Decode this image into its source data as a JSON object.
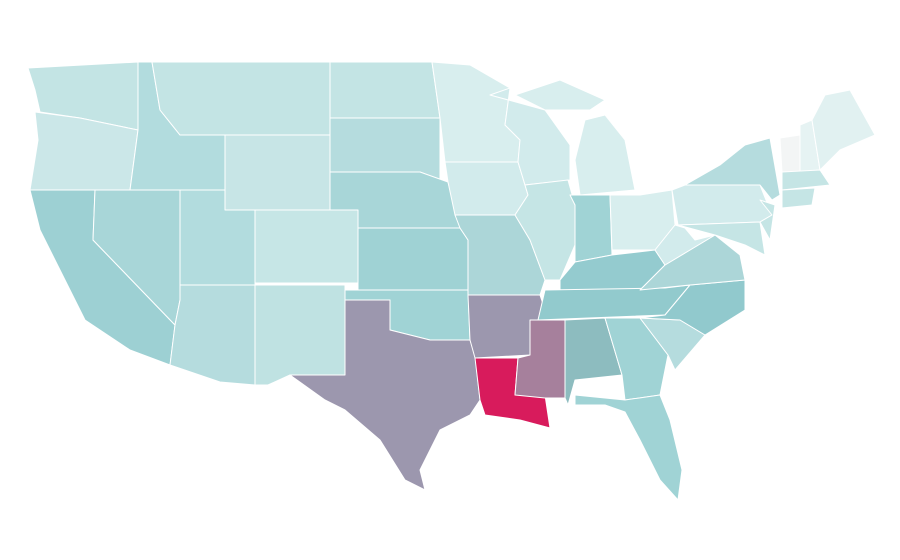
{
  "map": {
    "regions": [
      {
        "color": "#c3e4e4"
      },
      {
        "color": "#cbe7e8"
      },
      {
        "color": "#9dd0d3"
      },
      {
        "color": "#a8d6d8"
      },
      {
        "color": "#b2dcde"
      },
      {
        "color": "#c3e4e4"
      },
      {
        "color": "#c7e5e6"
      },
      {
        "color": "#b2dcde"
      },
      {
        "color": "#c6e6e6"
      },
      {
        "color": "#b5dcde"
      },
      {
        "color": "#bfe2e2"
      },
      {
        "color": "#c3e4e4"
      },
      {
        "color": "#b5dcde"
      },
      {
        "color": "#a8d6d8"
      },
      {
        "color": "#9fd2d4"
      },
      {
        "color": "#a0d3d5"
      },
      {
        "color": "#9c97ae"
      },
      {
        "color": "#d8eeee"
      },
      {
        "color": "#d2ebec"
      },
      {
        "color": "#acd6d8"
      },
      {
        "color": "#9c97ae"
      },
      {
        "color": "#d81b5c"
      },
      {
        "color": "#d2ebec"
      },
      {
        "color": "#c5e5e5"
      },
      {
        "color": "#d8eeee"
      },
      {
        "color": "#d8eeee"
      },
      {
        "color": "#a0d3d5"
      },
      {
        "color": "#d8eeee"
      },
      {
        "color": "#94cbcf"
      },
      {
        "color": "#92cacd"
      },
      {
        "color": "#a6809c"
      },
      {
        "color": "#8dbcbf"
      },
      {
        "color": "#a0d3d5"
      },
      {
        "color": "#a0d3d5"
      },
      {
        "color": "#b5dcde"
      },
      {
        "color": "#91c9cd"
      },
      {
        "color": "#acd6d8"
      },
      {
        "color": "#d2ebec"
      },
      {
        "color": "#d2ebec"
      },
      {
        "color": "#b5dcde"
      },
      {
        "color": "#c5e5e5"
      },
      {
        "color": "#c5e5e5"
      },
      {
        "color": "#f3f5f5"
      },
      {
        "color": "#e6f3f3"
      },
      {
        "color": "#e1f1f1"
      },
      {
        "color": "#c5e5e5"
      },
      {
        "color": "#c5e5e5"
      }
    ]
  }
}
